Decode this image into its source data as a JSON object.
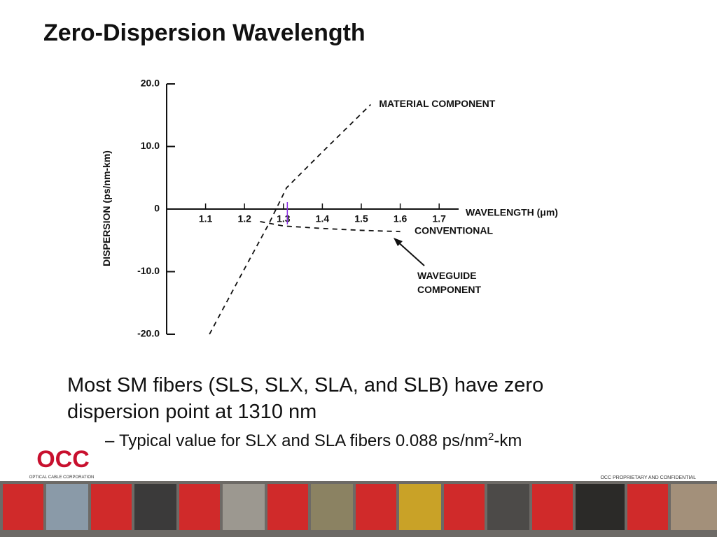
{
  "slide_title": "Zero-Dispersion Wavelength",
  "chart_data": {
    "type": "line",
    "xlabel": "WAVELENGTH (μm)",
    "ylabel": "DISPERSION (ps/nm-km)",
    "xlim": [
      1.0,
      1.75
    ],
    "ylim": [
      -20,
      20
    ],
    "xticks": [
      1.1,
      1.2,
      1.3,
      1.4,
      1.5,
      1.6,
      1.7
    ],
    "yticks": [
      {
        "value": 20,
        "label": "20.0"
      },
      {
        "value": 10,
        "label": "10.0"
      },
      0,
      {
        "value": -10,
        "label": "-10.0"
      },
      {
        "value": -20,
        "label": "-20.0"
      }
    ],
    "series": [
      {
        "name": "MATERIAL COMPONENT",
        "color": "#111111",
        "x": [
          1.11,
          1.183,
          1.263,
          1.308,
          1.398,
          1.524
        ],
        "values": [
          -20,
          -11.5,
          -2.3,
          3.4,
          9.0,
          16.7
        ]
      },
      {
        "name": "WAVEGUIDE COMPONENT",
        "color": "#111111",
        "x": [
          1.24,
          1.3,
          1.4,
          1.5,
          1.6
        ],
        "values": [
          -2.0,
          -2.7,
          -3.1,
          -3.4,
          -3.6
        ]
      }
    ],
    "annotations": [
      "CONVENTIONAL"
    ],
    "zero_dispersion_marker": 1.31
  },
  "bullets": [
    {
      "text": "Most SM fibers (SLS, SLX, SLA, and SLB) have zero dispersion point at 1310 nm"
    },
    {
      "dash": "–",
      "text": "Typical value for SLX and SLA fibers 0.088 ps/nm",
      "sup": "2",
      "tail": "-km"
    }
  ],
  "footer": {
    "logo": "OCC",
    "company": "OPTICAL CABLE CORPORATION",
    "notice": "OCC PROPRIETARY AND CONFIDENTIAL"
  }
}
